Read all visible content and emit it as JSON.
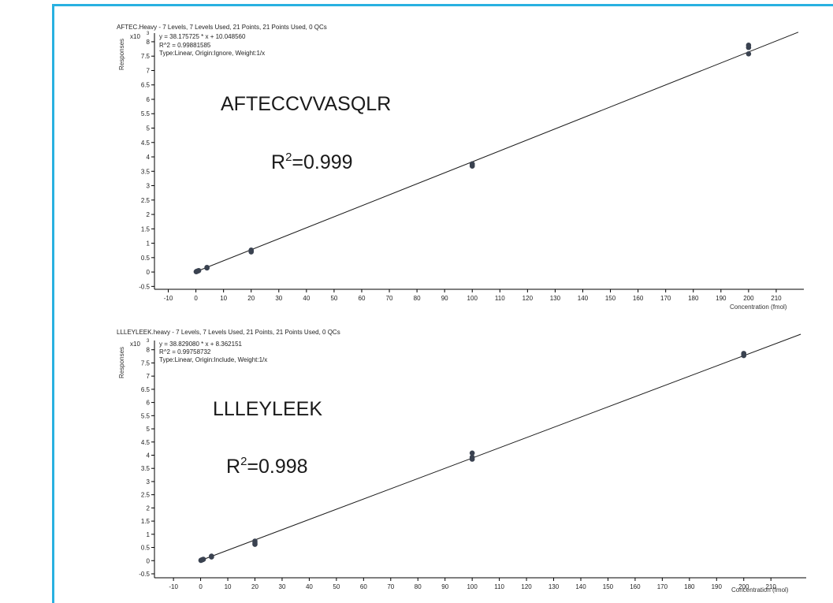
{
  "colors": {
    "frame": "#29b1e1",
    "axis": "#000000",
    "fit_line": "#1a1a1a",
    "points": "#3a4250"
  },
  "chart_data": [
    {
      "type": "scatter",
      "title": "AFTEC.Heavy - 7 Levels, 7 Levels Used, 21 Points, 21 Points Used, 0 QCs",
      "equation": "y = 38.175725 * x  + 10.048560",
      "r2_line": "R^2 = 0.99881585",
      "type_line": "Type:Linear, Origin:Ignore, Weight:1/x",
      "ylabel": "Responses",
      "y_multiplier": "x10",
      "y_multiplier_exp": "3",
      "xlabel": "Concentration (fmol)",
      "x_ticks": [
        "-10",
        "0",
        "10",
        "20",
        "30",
        "40",
        "50",
        "60",
        "70",
        "80",
        "90",
        "100",
        "110",
        "120",
        "130",
        "140",
        "150",
        "160",
        "170",
        "180",
        "190",
        "200",
        "210"
      ],
      "y_ticks": [
        "-0.5",
        "0",
        "0.5",
        "1",
        "1.5",
        "2",
        "2.5",
        "3",
        "3.5",
        "4",
        "4.5",
        "5",
        "5.5",
        "6",
        "6.5",
        "7",
        "7.5",
        "8"
      ],
      "xlim": [
        -15,
        220
      ],
      "ylim": [
        -0.6,
        8.3
      ],
      "fit": {
        "slope": 0.038175725,
        "intercept": 0.01004856
      },
      "points": [
        {
          "x": 0.1,
          "y": 0.01
        },
        {
          "x": 0.25,
          "y": 0.02
        },
        {
          "x": 0.5,
          "y": 0.03
        },
        {
          "x": 0.75,
          "y": 0.04
        },
        {
          "x": 1,
          "y": 0.05
        },
        {
          "x": 4,
          "y": 0.14
        },
        {
          "x": 4,
          "y": 0.16
        },
        {
          "x": 20,
          "y": 0.7
        },
        {
          "x": 20,
          "y": 0.73
        },
        {
          "x": 20,
          "y": 0.76
        },
        {
          "x": 100,
          "y": 3.68
        },
        {
          "x": 100,
          "y": 3.73
        },
        {
          "x": 100,
          "y": 3.76
        },
        {
          "x": 200,
          "y": 7.58
        },
        {
          "x": 200,
          "y": 7.8
        },
        {
          "x": 200,
          "y": 7.88
        }
      ],
      "annotation_name": "AFTECCVVASQLR",
      "annotation_r_prefix": "R",
      "annotation_r_sup": "2",
      "annotation_r_value": "=0.999"
    },
    {
      "type": "scatter",
      "title": "LLLEYLEEK.heavy - 7 Levels, 7 Levels Used, 21 Points, 21 Points Used, 0 QCs",
      "equation": "y = 38.829080 * x  + 8.362151",
      "r2_line": "R^2 = 0.99758732",
      "type_line": "Type:Linear, Origin:Include, Weight:1/x",
      "ylabel": "Responses",
      "y_multiplier": "x10",
      "y_multiplier_exp": "3",
      "xlabel": "Concentration (fmol)",
      "x_ticks": [
        "-10",
        "0",
        "10",
        "20",
        "30",
        "40",
        "50",
        "60",
        "70",
        "80",
        "90",
        "100",
        "110",
        "120",
        "130",
        "140",
        "150",
        "160",
        "170",
        "180",
        "190",
        "200",
        "210"
      ],
      "y_ticks": [
        "-0.5",
        "0",
        "0.5",
        "1",
        "1.5",
        "2",
        "2.5",
        "3",
        "3.5",
        "4",
        "4.5",
        "5",
        "5.5",
        "6",
        "6.5",
        "7",
        "7.5",
        "8"
      ],
      "xlim": [
        -17,
        223
      ],
      "ylim": [
        -0.65,
        8.35
      ],
      "fit": {
        "slope": 0.03882908,
        "intercept": 0.008362151
      },
      "points": [
        {
          "x": 0.1,
          "y": 0.01
        },
        {
          "x": 0.25,
          "y": 0.02
        },
        {
          "x": 0.5,
          "y": 0.03
        },
        {
          "x": 0.75,
          "y": 0.04
        },
        {
          "x": 1,
          "y": 0.05
        },
        {
          "x": 4,
          "y": 0.14
        },
        {
          "x": 4,
          "y": 0.17
        },
        {
          "x": 20,
          "y": 0.62
        },
        {
          "x": 20,
          "y": 0.68
        },
        {
          "x": 20,
          "y": 0.74
        },
        {
          "x": 100,
          "y": 3.85
        },
        {
          "x": 100,
          "y": 3.92
        },
        {
          "x": 100,
          "y": 4.08
        },
        {
          "x": 200,
          "y": 7.78
        },
        {
          "x": 200,
          "y": 7.83
        },
        {
          "x": 200,
          "y": 7.86
        }
      ],
      "annotation_name": "LLLEYLEEK",
      "annotation_r_prefix": "R",
      "annotation_r_sup": "2",
      "annotation_r_value": "=0.998"
    }
  ]
}
